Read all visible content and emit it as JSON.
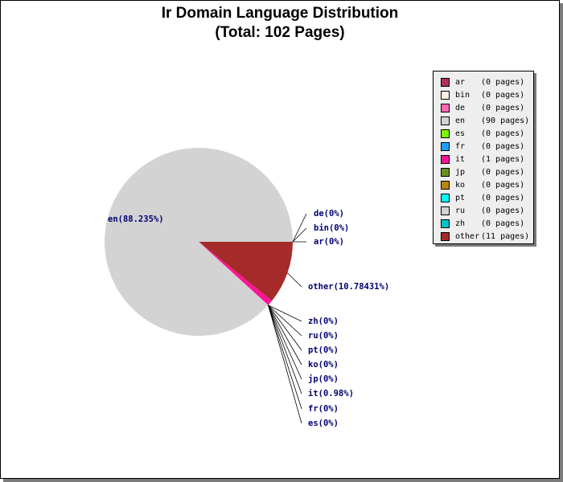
{
  "chart_data": {
    "type": "pie",
    "title": "Ir Domain Language Distribution",
    "subtitle": "(Total: 102 Pages)",
    "legend_position": "top-right",
    "slices": [
      {
        "code": "ar",
        "pages": 0,
        "pages_label": "(0 pages)",
        "pct_label": "ar(0%)",
        "color": "#b03060"
      },
      {
        "code": "bin",
        "pages": 0,
        "pages_label": "(0 pages)",
        "pct_label": "bin(0%)",
        "color": "#fff0e0"
      },
      {
        "code": "de",
        "pages": 0,
        "pages_label": "(0 pages)",
        "pct_label": "de(0%)",
        "color": "#ff69b4"
      },
      {
        "code": "en",
        "pages": 90,
        "pages_label": "(90 pages)",
        "pct_label": "en(88.235%)",
        "color": "#d3d3d3"
      },
      {
        "code": "es",
        "pages": 0,
        "pages_label": "(0 pages)",
        "pct_label": "es(0%)",
        "color": "#7cfc00"
      },
      {
        "code": "fr",
        "pages": 0,
        "pages_label": "(0 pages)",
        "pct_label": "fr(0%)",
        "color": "#1ea0ff"
      },
      {
        "code": "it",
        "pages": 1,
        "pages_label": "(1 pages)",
        "pct_label": "it(0.98%)",
        "color": "#ff1493"
      },
      {
        "code": "jp",
        "pages": 0,
        "pages_label": "(0 pages)",
        "pct_label": "jp(0%)",
        "color": "#6b8e23"
      },
      {
        "code": "ko",
        "pages": 0,
        "pages_label": "(0 pages)",
        "pct_label": "ko(0%)",
        "color": "#b8860b"
      },
      {
        "code": "pt",
        "pages": 0,
        "pages_label": "(0 pages)",
        "pct_label": "pt(0%)",
        "color": "#00ffff"
      },
      {
        "code": "ru",
        "pages": 0,
        "pages_label": "(0 pages)",
        "pct_label": "ru(0%)",
        "color": "#d3d3d3"
      },
      {
        "code": "zh",
        "pages": 0,
        "pages_label": "(0 pages)",
        "pct_label": "zh(0%)",
        "color": "#00c0c8"
      },
      {
        "code": "other",
        "pages": 11,
        "pages_label": "(11 pages)",
        "pct_label": "other(10.78431%)",
        "color": "#a52a2a"
      }
    ]
  }
}
